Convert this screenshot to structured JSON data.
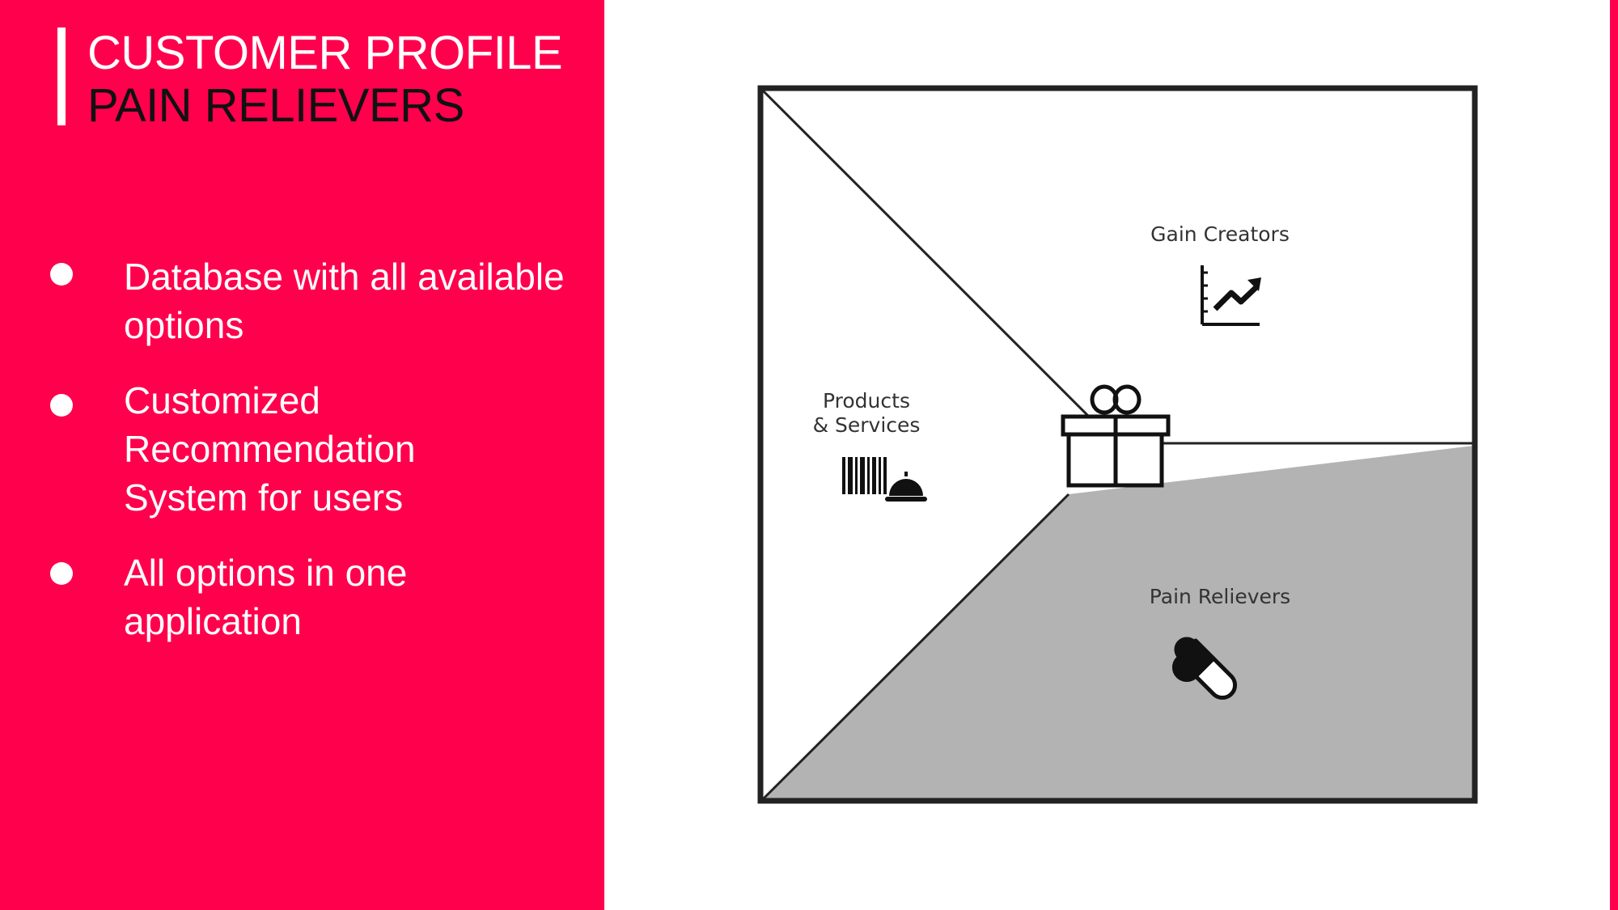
{
  "slide": {
    "title_line1": "CUSTOMER PROFILE",
    "title_line2": "PAIN RELIEVERS",
    "bullets": [
      "Database with all available options",
      "Customized Recommendation System for users",
      "All options in one application"
    ]
  },
  "diagram": {
    "gain_creators_label": "Gain Creators",
    "products_services_label_line1": "Products",
    "products_services_label_line2": "& Services",
    "pain_relievers_label": "Pain Relievers",
    "icons": [
      "growth-chart-icon",
      "barcode-cloche-icon",
      "gift-box-icon",
      "pill-icon"
    ]
  },
  "colors": {
    "accent": "#ff004c",
    "shaded_area": "#b3b3b3",
    "outline": "#222222"
  }
}
